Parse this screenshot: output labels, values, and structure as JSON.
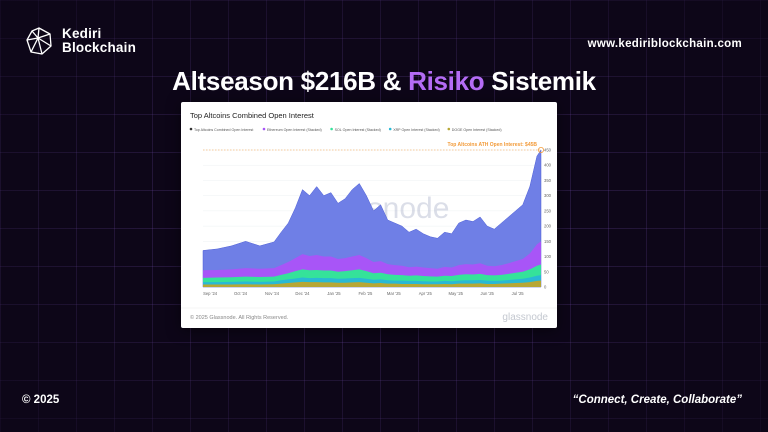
{
  "brand": {
    "line1": "Kediri",
    "line2": "Blockchain",
    "logo": "geodesic-sphere-icon"
  },
  "website": "www.kediriblockchain.com",
  "headline": {
    "part1": "Altseason $216B & ",
    "highlight": "Risiko",
    "part2": " Sistemik"
  },
  "footer": {
    "copyright": "© 2025",
    "tagline": "“Connect, Create, Collaborate”"
  },
  "colors": {
    "background": "#0d0618",
    "accent": "#b46cf5",
    "total_oi": "#6f7fe6",
    "ethereum": "#a855f7",
    "sol": "#35e29a",
    "xrp": "#29b9d4",
    "doge": "#b7a735",
    "ath": "#f29a38"
  },
  "chart_data": {
    "type": "area",
    "title": "Top Altcoins Combined Open Interest",
    "legend": [
      "Top Altcoins Combined Open Interest",
      "Ethereum Open Interest (Stacked)",
      "SOL Open Interest (Stacked)",
      "XRP Open Interest (Stacked)",
      "DOGE Open Interest (Stacked)"
    ],
    "legend_placement": "top",
    "annotation": "Top Altcoins ATH Open Interest: $45B",
    "watermark": "glassnode",
    "copyright": "© 2025 Glassnode. All Rights Reserved.",
    "footer_logo": "glassnode",
    "x_ticks": [
      "Sep '24",
      "Oct '24",
      "Nov '24",
      "Dec '24",
      "Jan '25",
      "Feb '25",
      "Mar '25",
      "Apr '25",
      "May '25",
      "Jun '25",
      "Jul '25"
    ],
    "y_ticks": [
      "0",
      "50",
      "100",
      "150",
      "200",
      "250",
      "300",
      "350",
      "400",
      "450"
    ],
    "y_range": [
      0,
      450
    ],
    "grid": true,
    "x": [
      "2024-08-25",
      "2024-09-08",
      "2024-09-22",
      "2024-10-06",
      "2024-10-20",
      "2024-11-03",
      "2024-11-10",
      "2024-11-17",
      "2024-11-24",
      "2024-12-01",
      "2024-12-08",
      "2024-12-15",
      "2024-12-22",
      "2024-12-29",
      "2025-01-05",
      "2025-01-12",
      "2025-01-19",
      "2025-01-26",
      "2025-02-02",
      "2025-02-09",
      "2025-02-16",
      "2025-02-23",
      "2025-03-02",
      "2025-03-09",
      "2025-03-16",
      "2025-03-23",
      "2025-03-30",
      "2025-04-06",
      "2025-04-13",
      "2025-04-20",
      "2025-04-27",
      "2025-05-04",
      "2025-05-11",
      "2025-05-18",
      "2025-05-25",
      "2025-06-01",
      "2025-06-08",
      "2025-06-15",
      "2025-06-22",
      "2025-06-29",
      "2025-07-06",
      "2025-07-13",
      "2025-07-20",
      "2025-07-24"
    ],
    "series": [
      {
        "name": "Top Altcoins Combined Open Interest",
        "values": [
          120,
          125,
          135,
          150,
          135,
          148,
          180,
          210,
          260,
          320,
          300,
          330,
          300,
          310,
          275,
          290,
          320,
          340,
          300,
          250,
          270,
          220,
          210,
          200,
          180,
          190,
          175,
          165,
          160,
          180,
          175,
          210,
          220,
          215,
          230,
          200,
          190,
          210,
          230,
          250,
          270,
          330,
          430,
          450
        ]
      },
      {
        "name": "Ethereum Open Interest (Stacked)",
        "values": [
          55,
          56,
          58,
          62,
          60,
          62,
          72,
          82,
          95,
          108,
          102,
          105,
          100,
          100,
          92,
          95,
          100,
          105,
          95,
          82,
          85,
          75,
          72,
          70,
          65,
          67,
          64,
          62,
          60,
          66,
          64,
          72,
          75,
          74,
          78,
          70,
          68,
          72,
          78,
          85,
          92,
          110,
          140,
          150
        ]
      },
      {
        "name": "SOL Open Interest (Stacked)",
        "values": [
          30,
          31,
          32,
          34,
          33,
          34,
          40,
          45,
          52,
          58,
          55,
          56,
          54,
          54,
          50,
          52,
          55,
          58,
          52,
          45,
          47,
          42,
          40,
          39,
          37,
          38,
          36,
          35,
          34,
          37,
          36,
          40,
          42,
          41,
          43,
          39,
          38,
          40,
          43,
          47,
          50,
          58,
          70,
          74
        ]
      },
      {
        "name": "XRP Open Interest (Stacked)",
        "values": [
          16,
          16,
          17,
          18,
          17,
          18,
          22,
          25,
          28,
          31,
          29,
          30,
          29,
          29,
          27,
          28,
          29,
          30,
          27,
          24,
          25,
          22,
          21,
          21,
          20,
          20,
          19,
          18,
          18,
          20,
          19,
          21,
          22,
          22,
          23,
          21,
          20,
          21,
          23,
          25,
          27,
          31,
          37,
          39
        ]
      },
      {
        "name": "DOGE Open Interest (Stacked)",
        "values": [
          8,
          8,
          8,
          9,
          8,
          9,
          11,
          13,
          15,
          17,
          16,
          16,
          15,
          15,
          14,
          14,
          15,
          16,
          14,
          12,
          13,
          11,
          11,
          10,
          10,
          10,
          9,
          9,
          9,
          10,
          9,
          11,
          11,
          11,
          12,
          10,
          10,
          11,
          12,
          13,
          14,
          16,
          20,
          21
        ]
      }
    ]
  }
}
